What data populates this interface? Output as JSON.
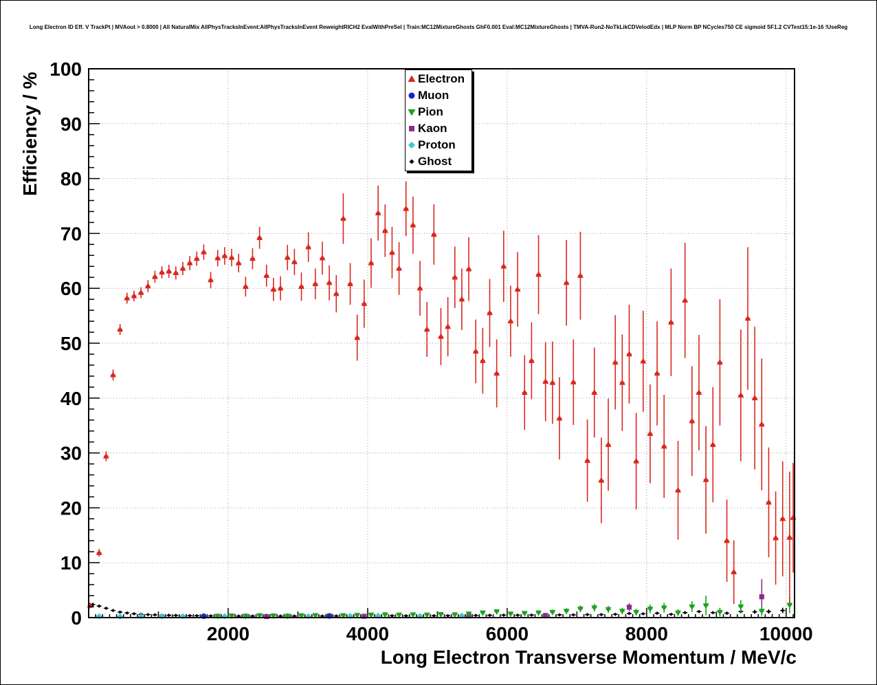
{
  "header": {
    "title": "Long Electron ID Eff. V TrackPt | MVAout > 0.8000 | All NaturalMix AllPhysTracksInEvent:AllPhysTracksInEvent ReweightRICH2 EvalWithPreSel | Train:MC12MixtureGhosts GhF0.001 Eval:MC12MixtureGhosts | TMVA-Run2-NoTkLikCDVelodEdx | MLP Norm BP NCycles750 CE sigmoid SF1.2 CVTest15:1e-16 !UseReg"
  },
  "chart_data": {
    "type": "scatter",
    "title": "Long Electron ID Eff. V TrackPt",
    "xlabel": "Long Electron Transverse Momentum / MeV/c",
    "ylabel": "Efficiency / %",
    "xlim": [
      0,
      10120
    ],
    "ylim": [
      0,
      100
    ],
    "xticks": [
      2000,
      4000,
      6000,
      8000,
      10000
    ],
    "yticks": [
      0,
      10,
      20,
      30,
      40,
      50,
      60,
      70,
      80,
      90,
      100
    ],
    "x_minor_step": 100,
    "y_minor_step": 2,
    "grid": true,
    "legend_position": "top-center",
    "bin_halfwidth": 34,
    "series": [
      {
        "name": "Electron",
        "marker": "triangle-up",
        "color": "#d8281e",
        "points": [
          [
            20,
            2.2,
            0.5
          ],
          [
            150,
            11.8,
            0.7
          ],
          [
            250,
            29.4,
            0.9
          ],
          [
            350,
            44.2,
            1.0
          ],
          [
            450,
            52.5,
            1.0
          ],
          [
            550,
            58.2,
            1.0
          ],
          [
            650,
            58.6,
            1.0
          ],
          [
            750,
            59.2,
            1.0
          ],
          [
            850,
            60.4,
            1.1
          ],
          [
            950,
            62.1,
            1.1
          ],
          [
            1050,
            62.9,
            1.1
          ],
          [
            1150,
            63.1,
            1.2
          ],
          [
            1250,
            62.8,
            1.2
          ],
          [
            1350,
            63.6,
            1.2
          ],
          [
            1450,
            64.6,
            1.3
          ],
          [
            1550,
            65.4,
            1.3
          ],
          [
            1650,
            66.6,
            1.4
          ],
          [
            1750,
            61.5,
            1.5
          ],
          [
            1850,
            65.5,
            1.5
          ],
          [
            1950,
            65.9,
            1.6
          ],
          [
            2050,
            65.6,
            1.6
          ],
          [
            2150,
            64.6,
            1.7
          ],
          [
            2250,
            60.3,
            1.8
          ],
          [
            2350,
            65.4,
            1.9
          ],
          [
            2450,
            69.2,
            2.0
          ],
          [
            2550,
            62.3,
            2.0
          ],
          [
            2650,
            59.8,
            2.1
          ],
          [
            2750,
            60.0,
            2.2
          ],
          [
            2850,
            65.6,
            2.3
          ],
          [
            2950,
            64.8,
            2.4
          ],
          [
            3050,
            60.3,
            2.6
          ],
          [
            3150,
            67.5,
            2.7
          ],
          [
            3250,
            60.8,
            2.8
          ],
          [
            3350,
            65.5,
            3.0
          ],
          [
            3450,
            61.0,
            3.2
          ],
          [
            3550,
            59.0,
            3.4
          ],
          [
            3650,
            72.7,
            4.6
          ],
          [
            3750,
            60.8,
            3.8
          ],
          [
            3850,
            51.0,
            4.2
          ],
          [
            3950,
            57.2,
            4.4
          ],
          [
            4050,
            64.6,
            4.5
          ],
          [
            4150,
            73.7,
            5.0
          ],
          [
            4250,
            70.5,
            4.8
          ],
          [
            4350,
            66.5,
            4.7
          ],
          [
            4450,
            63.6,
            4.8
          ],
          [
            4550,
            74.5,
            5.0
          ],
          [
            4650,
            71.5,
            5.2
          ],
          [
            4750,
            60.0,
            5.0
          ],
          [
            4850,
            52.5,
            5.0
          ],
          [
            4950,
            69.8,
            5.5
          ],
          [
            5050,
            51.2,
            5.2
          ],
          [
            5150,
            53.0,
            5.4
          ],
          [
            5250,
            62.0,
            5.6
          ],
          [
            5350,
            58.0,
            5.6
          ],
          [
            5450,
            63.5,
            5.8
          ],
          [
            5550,
            48.5,
            5.8
          ],
          [
            5650,
            46.8,
            6.0
          ],
          [
            5750,
            55.5,
            6.2
          ],
          [
            5850,
            44.5,
            6.2
          ],
          [
            5950,
            64.0,
            6.5
          ],
          [
            6050,
            54.0,
            6.5
          ],
          [
            6150,
            59.8,
            6.8
          ],
          [
            6250,
            41.0,
            6.8
          ],
          [
            6350,
            46.8,
            7.0
          ],
          [
            6450,
            62.5,
            7.2
          ],
          [
            6550,
            43.0,
            7.2
          ],
          [
            6650,
            42.8,
            7.5
          ],
          [
            6750,
            36.3,
            7.5
          ],
          [
            6850,
            61.0,
            7.8
          ],
          [
            6950,
            42.9,
            7.8
          ],
          [
            7050,
            62.3,
            8.0
          ],
          [
            7150,
            28.6,
            7.5
          ],
          [
            7250,
            41.0,
            8.2
          ],
          [
            7350,
            25.0,
            7.8
          ],
          [
            7450,
            31.5,
            8.4
          ],
          [
            7550,
            46.5,
            8.6
          ],
          [
            7650,
            42.8,
            8.8
          ],
          [
            7750,
            48.0,
            9.0
          ],
          [
            7850,
            28.5,
            8.8
          ],
          [
            7950,
            46.7,
            9.2
          ],
          [
            8050,
            33.5,
            9.0
          ],
          [
            8150,
            44.5,
            9.5
          ],
          [
            8250,
            31.2,
            9.4
          ],
          [
            8350,
            53.8,
            9.8
          ],
          [
            8450,
            23.2,
            9.0
          ],
          [
            8550,
            57.8,
            10.5
          ],
          [
            8650,
            35.8,
            10.0
          ],
          [
            8750,
            41.0,
            10.5
          ],
          [
            8850,
            25.1,
            9.8
          ],
          [
            8950,
            31.5,
            10.5
          ],
          [
            9050,
            46.5,
            11.5
          ],
          [
            9150,
            14.0,
            7.5
          ],
          [
            9250,
            8.3,
            5.8
          ],
          [
            9350,
            40.5,
            12.0
          ],
          [
            9450,
            54.5,
            13.0
          ],
          [
            9550,
            40.0,
            13.0
          ],
          [
            9650,
            35.2,
            12.0
          ],
          [
            9750,
            21.0,
            10.0
          ],
          [
            9850,
            14.5,
            8.5
          ],
          [
            9950,
            18.0,
            10.5
          ],
          [
            10050,
            14.6,
            12.0
          ],
          [
            10100,
            18.2,
            10.0
          ]
        ]
      },
      {
        "name": "Muon",
        "marker": "circle",
        "color": "#1c24c8",
        "points": [
          [
            1650,
            0.25,
            0.12
          ],
          [
            3450,
            0.3,
            0.12
          ]
        ]
      },
      {
        "name": "Pion",
        "marker": "triangle-down",
        "color": "#1ea01e",
        "points": [
          [
            1850,
            0.3,
            0.15
          ],
          [
            2050,
            0.35,
            0.15
          ],
          [
            2250,
            0.3,
            0.15
          ],
          [
            2450,
            0.4,
            0.2
          ],
          [
            2650,
            0.35,
            0.18
          ],
          [
            2850,
            0.3,
            0.15
          ],
          [
            3050,
            0.38,
            0.2
          ],
          [
            3250,
            0.42,
            0.2
          ],
          [
            3450,
            0.35,
            0.18
          ],
          [
            3650,
            0.4,
            0.2
          ],
          [
            3850,
            0.45,
            0.22
          ],
          [
            4050,
            0.5,
            0.22
          ],
          [
            4250,
            0.55,
            0.25
          ],
          [
            4450,
            0.5,
            0.25
          ],
          [
            4650,
            0.55,
            0.25
          ],
          [
            4850,
            0.5,
            0.25
          ],
          [
            5050,
            0.6,
            0.28
          ],
          [
            5250,
            0.55,
            0.28
          ],
          [
            5450,
            0.7,
            0.3
          ],
          [
            5650,
            0.9,
            0.35
          ],
          [
            5850,
            1.1,
            0.4
          ],
          [
            6050,
            0.7,
            0.35
          ],
          [
            6250,
            0.8,
            0.38
          ],
          [
            6450,
            0.9,
            0.4
          ],
          [
            6650,
            1.0,
            0.45
          ],
          [
            6850,
            1.2,
            0.5
          ],
          [
            7050,
            1.6,
            0.6
          ],
          [
            7250,
            1.8,
            0.7
          ],
          [
            7450,
            1.5,
            0.65
          ],
          [
            7650,
            1.2,
            0.6
          ],
          [
            7850,
            1.0,
            0.6
          ],
          [
            8050,
            1.6,
            0.8
          ],
          [
            8250,
            1.8,
            0.9
          ],
          [
            8450,
            0.9,
            0.6
          ],
          [
            8650,
            2.0,
            1.0
          ],
          [
            8850,
            2.2,
            1.8
          ],
          [
            9050,
            1.0,
            0.8
          ],
          [
            9350,
            2.0,
            1.2
          ],
          [
            9650,
            1.2,
            0.9
          ],
          [
            10050,
            2.3,
            1.5
          ]
        ]
      },
      {
        "name": "Kaon",
        "marker": "square",
        "color": "#8c2d8c",
        "points": [
          [
            2550,
            0.2,
            0.1
          ],
          [
            3950,
            0.25,
            0.12
          ],
          [
            5450,
            0.3,
            0.15
          ],
          [
            6550,
            0.4,
            0.2
          ],
          [
            7750,
            1.9,
            0.7
          ],
          [
            9650,
            3.8,
            3.2
          ]
        ]
      },
      {
        "name": "Proton",
        "marker": "diamond",
        "color": "#3fc8c8",
        "points": [
          [
            150,
            0.25,
            0.1
          ],
          [
            450,
            0.2,
            0.1
          ],
          [
            750,
            0.25,
            0.1
          ],
          [
            1050,
            0.22,
            0.1
          ],
          [
            1350,
            0.25,
            0.1
          ],
          [
            1650,
            0.3,
            0.12
          ],
          [
            1950,
            0.25,
            0.1
          ],
          [
            2250,
            0.3,
            0.12
          ],
          [
            2550,
            0.25,
            0.1
          ],
          [
            2850,
            0.3,
            0.12
          ],
          [
            3150,
            0.27,
            0.1
          ],
          [
            3450,
            0.3,
            0.12
          ],
          [
            3750,
            0.3,
            0.12
          ],
          [
            4150,
            0.35,
            0.15
          ],
          [
            4750,
            0.3,
            0.15
          ],
          [
            5350,
            0.35,
            0.18
          ]
        ]
      },
      {
        "name": "Ghost",
        "marker": "diamond-small",
        "color": "#000000",
        "points": [
          [
            60,
            2.4,
            0.3
          ],
          [
            150,
            2.1,
            0.25
          ],
          [
            250,
            1.7,
            0.2
          ],
          [
            350,
            1.3,
            0.15
          ],
          [
            450,
            1.0,
            0.12
          ],
          [
            550,
            0.85,
            0.1
          ],
          [
            650,
            0.7,
            0.1
          ],
          [
            750,
            0.6,
            0.09
          ],
          [
            850,
            0.55,
            0.08
          ],
          [
            950,
            0.5,
            0.08
          ],
          [
            1050,
            0.45,
            0.07
          ],
          [
            1150,
            0.42,
            0.07
          ],
          [
            1250,
            0.4,
            0.06
          ],
          [
            1350,
            0.38,
            0.06
          ],
          [
            1450,
            0.36,
            0.06
          ],
          [
            1550,
            0.35,
            0.05
          ],
          [
            1650,
            0.33,
            0.05
          ],
          [
            1750,
            0.32,
            0.05
          ],
          [
            1850,
            0.3,
            0.05
          ],
          [
            1950,
            0.3,
            0.05
          ],
          [
            2150,
            0.28,
            0.05
          ],
          [
            2350,
            0.29,
            0.04
          ],
          [
            2550,
            0.28,
            0.04
          ],
          [
            2750,
            0.28,
            0.04
          ],
          [
            2950,
            0.28,
            0.04
          ],
          [
            3150,
            0.3,
            0.05
          ],
          [
            3350,
            0.29,
            0.05
          ],
          [
            3550,
            0.3,
            0.05
          ],
          [
            3750,
            0.3,
            0.05
          ],
          [
            3950,
            0.32,
            0.06
          ],
          [
            4150,
            0.3,
            0.06
          ],
          [
            4350,
            0.34,
            0.06
          ],
          [
            4550,
            0.33,
            0.06
          ],
          [
            4750,
            0.34,
            0.07
          ],
          [
            4950,
            0.34,
            0.07
          ],
          [
            5150,
            0.35,
            0.07
          ],
          [
            5350,
            0.38,
            0.08
          ],
          [
            5550,
            0.4,
            0.08
          ],
          [
            5750,
            0.42,
            0.09
          ],
          [
            5950,
            0.45,
            0.1
          ],
          [
            6150,
            0.44,
            0.1
          ],
          [
            6350,
            0.46,
            0.1
          ],
          [
            6550,
            0.48,
            0.11
          ],
          [
            6750,
            0.5,
            0.12
          ],
          [
            6950,
            0.5,
            0.12
          ],
          [
            7150,
            0.55,
            0.13
          ],
          [
            7350,
            0.55,
            0.14
          ],
          [
            7550,
            0.6,
            0.15
          ],
          [
            7750,
            0.75,
            0.17
          ],
          [
            7950,
            0.7,
            0.17
          ],
          [
            8150,
            0.8,
            0.19
          ],
          [
            8350,
            0.6,
            0.18
          ],
          [
            8550,
            0.9,
            0.22
          ],
          [
            8750,
            1.1,
            0.26
          ],
          [
            8950,
            0.9,
            0.26
          ],
          [
            9150,
            0.8,
            0.28
          ],
          [
            9350,
            1.1,
            0.34
          ],
          [
            9550,
            1.05,
            0.36
          ],
          [
            9750,
            1.1,
            0.4
          ],
          [
            9950,
            1.3,
            0.5
          ]
        ]
      }
    ]
  }
}
